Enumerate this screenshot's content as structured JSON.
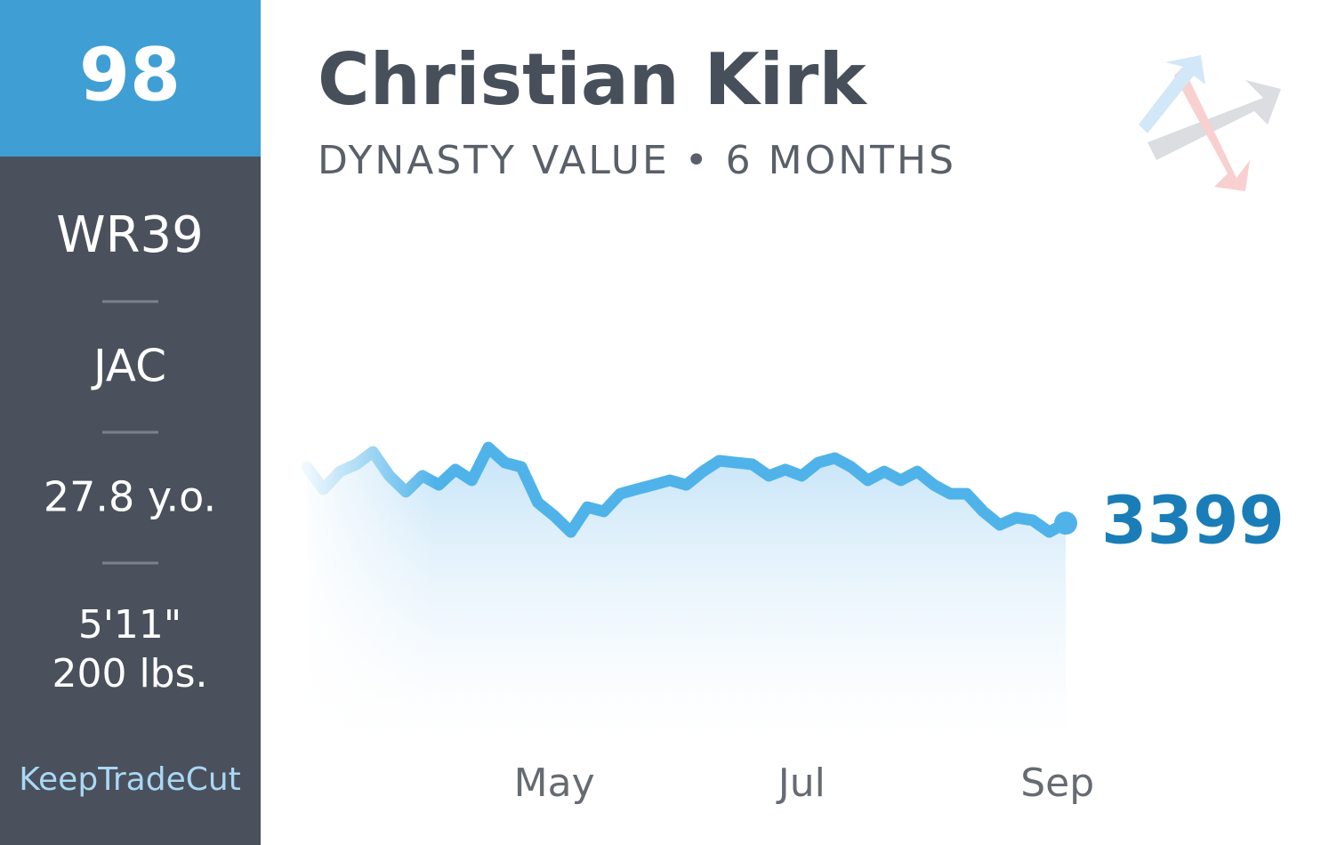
{
  "sidebar": {
    "rank": "98",
    "position_rank": "WR39",
    "team": "JAC",
    "age": "27.8 y.o.",
    "height": "5'11\"",
    "weight": "200 lbs.",
    "brand": "KeepTradeCut"
  },
  "chart_data": {
    "type": "line",
    "title": "Christian Kirk",
    "subtitle": "DYNASTY VALUE • 6 MONTHS",
    "values": [
      3634,
      3541,
      3615,
      3645,
      3697,
      3597,
      3530,
      3597,
      3559,
      3623,
      3578,
      3715,
      3652,
      3634,
      3485,
      3429,
      3362,
      3466,
      3448,
      3522,
      3541,
      3559,
      3578,
      3559,
      3615,
      3660,
      3652,
      3645,
      3597,
      3623,
      3597,
      3652,
      3671,
      3634,
      3578,
      3615,
      3578,
      3615,
      3559,
      3522,
      3522,
      3448,
      3392,
      3422,
      3411,
      3362,
      3399
    ],
    "color": "#4fb3ea",
    "ylim": [
      2500,
      4500
    ],
    "xlim": [
      0,
      46
    ],
    "xticks": [
      {
        "value": 15,
        "label": "May"
      },
      {
        "value": 30,
        "label": "Jul"
      },
      {
        "value": 45.5,
        "label": "Sep"
      }
    ]
  }
}
